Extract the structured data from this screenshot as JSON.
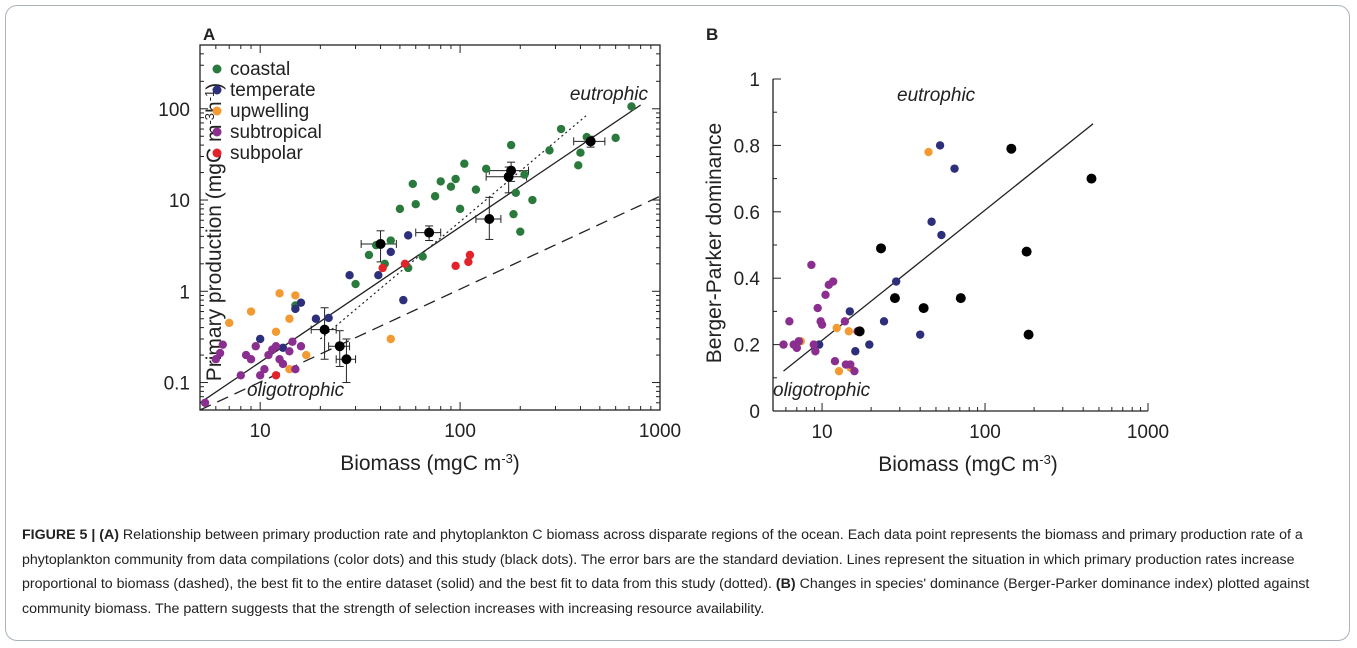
{
  "chart_data": [
    {
      "panel": "A",
      "type": "scatter",
      "xlabel": "Biomass (mgC m",
      "xlabel_sup": "-3",
      "xlabel_end": ")",
      "ylabel": "Primary production (mgC m",
      "ylabel_sup1": "-3",
      "ylabel_mid": "h",
      "ylabel_sup2": "-1",
      "ylabel_end": ")",
      "xscale": "log",
      "yscale": "log",
      "xlim": [
        5,
        1000
      ],
      "ylim": [
        0.05,
        500
      ],
      "xticks": [
        10,
        100,
        1000
      ],
      "xtick_labels": [
        "10",
        "100",
        "1000"
      ],
      "yticks": [
        0.1,
        1,
        10,
        100
      ],
      "ytick_labels": [
        "0.1",
        "1",
        "10",
        "100"
      ],
      "legend_position": "top-left",
      "annotations": [
        "eutrophic",
        "oligotrophic"
      ],
      "series": [
        {
          "name": "coastal",
          "color": "#2b7a3d",
          "points": [
            [
              15,
              0.7
            ],
            [
              30,
              1.2
            ],
            [
              35,
              2.5
            ],
            [
              38,
              3.2
            ],
            [
              42,
              2.0
            ],
            [
              45,
              3.6
            ],
            [
              50,
              8
            ],
            [
              55,
              1.8
            ],
            [
              58,
              15
            ],
            [
              60,
              9
            ],
            [
              65,
              2.4
            ],
            [
              75,
              11
            ],
            [
              80,
              16
            ],
            [
              90,
              14
            ],
            [
              95,
              17
            ],
            [
              100,
              8
            ],
            [
              105,
              25
            ],
            [
              120,
              13
            ],
            [
              135,
              22
            ],
            [
              180,
              40
            ],
            [
              185,
              7
            ],
            [
              190,
              12
            ],
            [
              200,
              4.5
            ],
            [
              210,
              19
            ],
            [
              230,
              10
            ],
            [
              280,
              35
            ],
            [
              320,
              60
            ],
            [
              390,
              24
            ],
            [
              400,
              33
            ],
            [
              430,
              49
            ],
            [
              600,
              48
            ],
            [
              720,
              106
            ]
          ]
        },
        {
          "name": "temperate",
          "color": "#2d2f7a",
          "points": [
            [
              10,
              0.3
            ],
            [
              13,
              0.24
            ],
            [
              15,
              0.64
            ],
            [
              16,
              0.75
            ],
            [
              19,
              0.5
            ],
            [
              22,
              0.51
            ],
            [
              28,
              1.5
            ],
            [
              39,
              1.5
            ],
            [
              45,
              2.7
            ],
            [
              52,
              0.8
            ],
            [
              55,
              4.1
            ]
          ]
        },
        {
          "name": "upwelling",
          "color": "#f39a32",
          "points": [
            [
              7,
              0.45
            ],
            [
              9,
              0.6
            ],
            [
              12,
              0.36
            ],
            [
              12.5,
              0.95
            ],
            [
              14,
              0.5
            ],
            [
              15,
              0.9
            ],
            [
              17,
              0.2
            ],
            [
              14,
              0.14
            ],
            [
              45,
              0.3
            ]
          ]
        },
        {
          "name": "subtropical",
          "color": "#8a2f8f",
          "points": [
            [
              5.3,
              0.06
            ],
            [
              6,
              0.18
            ],
            [
              6.3,
              0.21
            ],
            [
              6.5,
              0.26
            ],
            [
              8,
              0.12
            ],
            [
              8.5,
              0.2
            ],
            [
              9,
              0.18
            ],
            [
              9.5,
              0.25
            ],
            [
              10,
              0.12
            ],
            [
              10.5,
              0.14
            ],
            [
              11,
              0.2
            ],
            [
              11.5,
              0.23
            ],
            [
              12,
              0.25
            ],
            [
              12.5,
              0.18
            ],
            [
              13,
              0.16
            ],
            [
              14,
              0.22
            ],
            [
              14.5,
              0.28
            ],
            [
              15,
              0.14
            ],
            [
              16,
              0.25
            ]
          ]
        },
        {
          "name": "subpolar",
          "color": "#e3232a",
          "points": [
            [
              12,
              0.12
            ],
            [
              41,
              1.8
            ],
            [
              53,
              2.0
            ],
            [
              95,
              1.9
            ],
            [
              110,
              2.1
            ],
            [
              112,
              2.5
            ]
          ]
        },
        {
          "name": "this study",
          "color": "#000000",
          "points": [
            [
              21,
              0.38
            ],
            [
              25,
              0.25
            ],
            [
              27,
              0.18
            ],
            [
              40,
              3.3
            ],
            [
              70,
              4.4
            ],
            [
              140,
              6.2
            ],
            [
              175,
              18
            ],
            [
              180,
              21
            ],
            [
              450,
              44
            ]
          ]
        }
      ],
      "lines": [
        "best fit to the entire dataset",
        "best fit to data from this study",
        "production proportional to biomass"
      ]
    },
    {
      "panel": "B",
      "type": "scatter",
      "xlabel": "Biomass (mgC m",
      "xlabel_sup": "-3",
      "xlabel_end": ")",
      "ylabel": "Berger-Parker dominance",
      "xscale": "log",
      "xlim": [
        5,
        1000
      ],
      "ylim": [
        0,
        1
      ],
      "xticks": [
        10,
        100,
        1000
      ],
      "xtick_labels": [
        "10",
        "100",
        "1000"
      ],
      "yticks": [
        0,
        0.2,
        0.4,
        0.6,
        0.8,
        1
      ],
      "ytick_labels": [
        "0",
        "0.2",
        "0.4",
        "0.6",
        "0.8",
        "1"
      ],
      "annotations": [
        "eutrophic",
        "oligotrophic"
      ],
      "series": [
        {
          "name": "temperate",
          "color": "#2d2f7a",
          "points": [
            [
              9.6,
              0.2
            ],
            [
              14.8,
              0.3
            ],
            [
              16,
              0.18
            ],
            [
              19.5,
              0.2
            ],
            [
              24,
              0.27
            ],
            [
              28.5,
              0.39
            ],
            [
              40,
              0.23
            ],
            [
              47,
              0.57
            ],
            [
              53,
              0.8
            ],
            [
              54,
              0.53
            ],
            [
              65,
              0.73
            ]
          ]
        },
        {
          "name": "upwelling",
          "color": "#f39a32",
          "points": [
            [
              7.4,
              0.21
            ],
            [
              12.3,
              0.25
            ],
            [
              12.7,
              0.12
            ],
            [
              14.6,
              0.24
            ],
            [
              15,
              0.13
            ],
            [
              45,
              0.78
            ]
          ]
        },
        {
          "name": "subtropical",
          "color": "#8a2f8f",
          "points": [
            [
              5.8,
              0.2
            ],
            [
              6.3,
              0.27
            ],
            [
              6.7,
              0.2
            ],
            [
              7,
              0.19
            ],
            [
              7.2,
              0.21
            ],
            [
              8.6,
              0.44
            ],
            [
              8.9,
              0.2
            ],
            [
              9.1,
              0.18
            ],
            [
              9.4,
              0.31
            ],
            [
              9.8,
              0.27
            ],
            [
              10,
              0.26
            ],
            [
              10.5,
              0.35
            ],
            [
              11,
              0.38
            ],
            [
              11.7,
              0.39
            ],
            [
              12,
              0.15
            ],
            [
              13.8,
              0.27
            ],
            [
              14,
              0.14
            ],
            [
              14.9,
              0.14
            ],
            [
              15.8,
              0.12
            ],
            [
              16.5,
              0.24
            ]
          ]
        },
        {
          "name": "this study",
          "color": "#000000",
          "points": [
            [
              17,
              0.24
            ],
            [
              23,
              0.49
            ],
            [
              28,
              0.34
            ],
            [
              42,
              0.31
            ],
            [
              71,
              0.34
            ],
            [
              145,
              0.79
            ],
            [
              180,
              0.48
            ],
            [
              185,
              0.23
            ],
            [
              450,
              0.7
            ]
          ]
        }
      ],
      "lines": [
        "linear fit"
      ]
    }
  ],
  "panel_labels": {
    "a": "A",
    "b": "B"
  },
  "caption": {
    "label": "FIGURE 5 | (A)",
    "text1": " Relationship between primary production rate and phytoplankton C biomass across disparate regions of the ocean. Each data point represents the biomass and primary production rate of a phytoplankton community from data compilations (color dots) and this study (black dots). The error bars are the standard deviation. Lines represent the situation in which primary production rates increase proportional to biomass (dashed), the best fit to the entire dataset (solid) and the best fit to data from this study (dotted). ",
    "label_b": "(B)",
    "text2": " Changes in species' dominance (Berger-Parker dominance index) plotted against community biomass. The pattern suggests that the strength of selection increases with increasing resource availability."
  }
}
